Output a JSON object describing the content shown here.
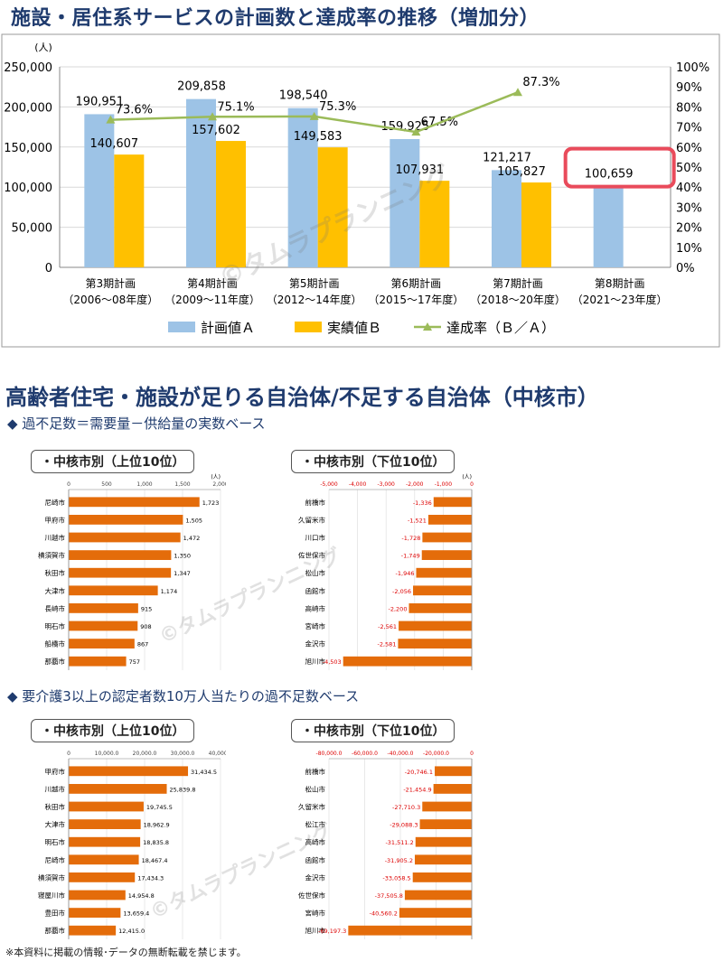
{
  "main_title": "施設・居住系サービスの計画数と達成率の推移（増加分）",
  "section_title": "高齢者住宅・施設が足りる自治体/不足する自治体（中核市）",
  "basis1": "◆ 過不足数＝需要量－供給量の実数ベース",
  "basis2": "◆ 要介護3以上の認定者数10万人当たりの過不足数ベース",
  "box_top10": "・中核市別（上位10位）",
  "box_bottom10": "・中核市別（下位10位）",
  "watermark": "©タムラプランニング",
  "footnote": "※本資料に掲載の情報･データの無断転載を禁じます。",
  "colors": {
    "plan": "#9dc3e6",
    "actual": "#ffc000",
    "rate": "#9bbb59",
    "bar": "#e46c0a",
    "highlight": "#e94b5b"
  },
  "chart_data": [
    {
      "type": "bar",
      "unit": "(人)",
      "categories": [
        "第3期計画",
        "第4期計画",
        "第5期計画",
        "第6期計画",
        "第7期計画",
        "第8期計画"
      ],
      "periods": [
        "（2006～08年度）",
        "（2009～11年度）",
        "（2012～14年度）",
        "（2015～17年度）",
        "（2018～20年度）",
        "（2021～23年度）"
      ],
      "series": [
        {
          "name": "計画値Ａ",
          "values": [
            190951,
            209858,
            198540,
            159925,
            121217,
            100659
          ],
          "labels": [
            "190,951",
            "209,858",
            "198,540",
            "159,925",
            "121,217",
            "100,659"
          ]
        },
        {
          "name": "実績値Ｂ",
          "values": [
            140607,
            157602,
            149583,
            107931,
            105827,
            null
          ],
          "labels": [
            "140,607",
            "157,602",
            "149,583",
            "107,931",
            "105,827",
            ""
          ]
        },
        {
          "name": "達成率（Ｂ／Ａ）",
          "type": "line",
          "axis": "right",
          "values": [
            73.6,
            75.1,
            75.3,
            67.5,
            87.3,
            null
          ],
          "labels": [
            "73.6%",
            "75.1%",
            "75.3%",
            "67.5%",
            "87.3%",
            ""
          ]
        }
      ],
      "ylim": [
        0,
        250000
      ],
      "yticks": [
        "0",
        "50,000",
        "100,000",
        "150,000",
        "200,000",
        "250,000"
      ],
      "y2lim": [
        0,
        100
      ],
      "y2ticks": [
        "0%",
        "10%",
        "20%",
        "30%",
        "40%",
        "50%",
        "60%",
        "70%",
        "80%",
        "90%",
        "100%"
      ],
      "highlight": "第8期計画",
      "legend": "bottom"
    },
    {
      "type": "bar",
      "orientation": "horizontal",
      "unit": "(人)",
      "categories": [
        "尼崎市",
        "甲府市",
        "川越市",
        "横須賀市",
        "秋田市",
        "大津市",
        "長崎市",
        "明石市",
        "船橋市",
        "那覇市"
      ],
      "values": [
        1723,
        1505,
        1472,
        1350,
        1347,
        1174,
        915,
        908,
        867,
        757
      ],
      "labels": [
        "1,723",
        "1,505",
        "1,472",
        "1,350",
        "1,347",
        "1,174",
        "915",
        "908",
        "867",
        "757"
      ],
      "xlim": [
        0,
        2000
      ],
      "xticks": [
        "0",
        "500",
        "1,000",
        "1,500",
        "2,000"
      ]
    },
    {
      "type": "bar",
      "orientation": "horizontal",
      "unit": "(人)",
      "categories": [
        "前橋市",
        "久留米市",
        "川口市",
        "佐世保市",
        "松山市",
        "函館市",
        "高崎市",
        "宮崎市",
        "金沢市",
        "旭川市"
      ],
      "values": [
        -1336,
        -1521,
        -1728,
        -1749,
        -1946,
        -2056,
        -2200,
        -2561,
        -2581,
        -4503
      ],
      "labels": [
        "-1,336",
        "-1,521",
        "-1,728",
        "-1,749",
        "-1,946",
        "-2,056",
        "-2,200",
        "-2,561",
        "-2,581",
        "-4,503"
      ],
      "xlim": [
        -5000,
        0
      ],
      "xticks": [
        "-5,000",
        "-4,000",
        "-3,000",
        "-2,000",
        "-1,000",
        "0"
      ]
    },
    {
      "type": "bar",
      "orientation": "horizontal",
      "categories": [
        "甲府市",
        "川越市",
        "秋田市",
        "大津市",
        "明石市",
        "尼崎市",
        "横須賀市",
        "寝屋川市",
        "豊田市",
        "那覇市"
      ],
      "values": [
        31434.5,
        25839.8,
        19745.5,
        18962.9,
        18835.8,
        18467.4,
        17434.3,
        14954.8,
        13659.4,
        12415.0
      ],
      "labels": [
        "31,434.5",
        "25,839.8",
        "19,745.5",
        "18,962.9",
        "18,835.8",
        "18,467.4",
        "17,434.3",
        "14,954.8",
        "13,659.4",
        "12,415.0"
      ],
      "xlim": [
        0,
        40000
      ],
      "xticks": [
        "0",
        "10,000.0",
        "20,000.0",
        "30,000.0",
        "40,000.0"
      ]
    },
    {
      "type": "bar",
      "orientation": "horizontal",
      "categories": [
        "前橋市",
        "松山市",
        "久留米市",
        "松江市",
        "高崎市",
        "函館市",
        "金沢市",
        "佐世保市",
        "宮崎市",
        "旭川市"
      ],
      "values": [
        -20746.1,
        -21454.9,
        -27710.3,
        -29088.3,
        -31511.2,
        -31905.2,
        -33058.5,
        -37505.8,
        -40560.2,
        -69197.3
      ],
      "labels": [
        "-20,746.1",
        "-21,454.9",
        "-27,710.3",
        "-29,088.3",
        "-31,511.2",
        "-31,905.2",
        "-33,058.5",
        "-37,505.8",
        "-40,560.2",
        "-69,197.3"
      ],
      "xlim": [
        -80000,
        0
      ],
      "xticks": [
        "-80,000.0",
        "-60,000.0",
        "-40,000.0",
        "-20,000.0",
        "0"
      ]
    }
  ]
}
